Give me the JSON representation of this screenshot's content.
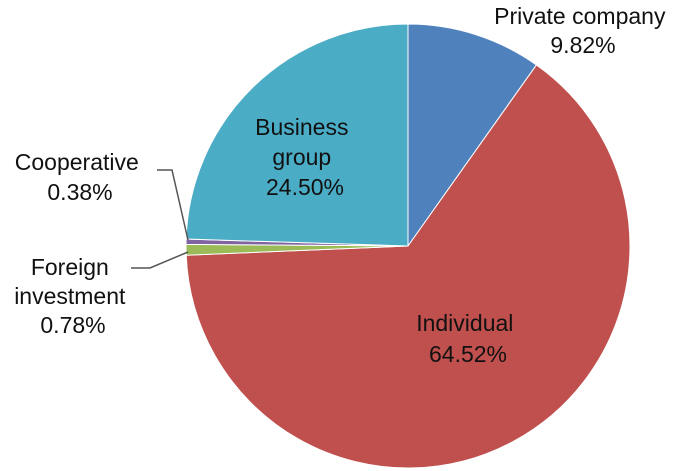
{
  "chart_data": {
    "type": "pie",
    "title": "",
    "slices": [
      {
        "key": "private",
        "label_lines": [
          "Private company",
          "9.82%"
        ],
        "category": "Private company",
        "value": 9.82,
        "color": "#4f81bd"
      },
      {
        "key": "individual",
        "label_lines": [
          "Individual",
          "64.52%"
        ],
        "category": "Individual",
        "value": 64.52,
        "color": "#c0504d"
      },
      {
        "key": "foreign",
        "label_lines": [
          "Foreign",
          "investment",
          "0.78%"
        ],
        "category": "Foreign investment",
        "value": 0.78,
        "color": "#9bbb59"
      },
      {
        "key": "cooperative",
        "label_lines": [
          "Cooperative",
          "0.38%"
        ],
        "category": "Cooperative",
        "value": 0.38,
        "color": "#8064a2"
      },
      {
        "key": "business",
        "label_lines": [
          "Business",
          "group",
          "24.50%"
        ],
        "category": "Business group",
        "value": 24.5,
        "color": "#4bacc6"
      }
    ]
  }
}
